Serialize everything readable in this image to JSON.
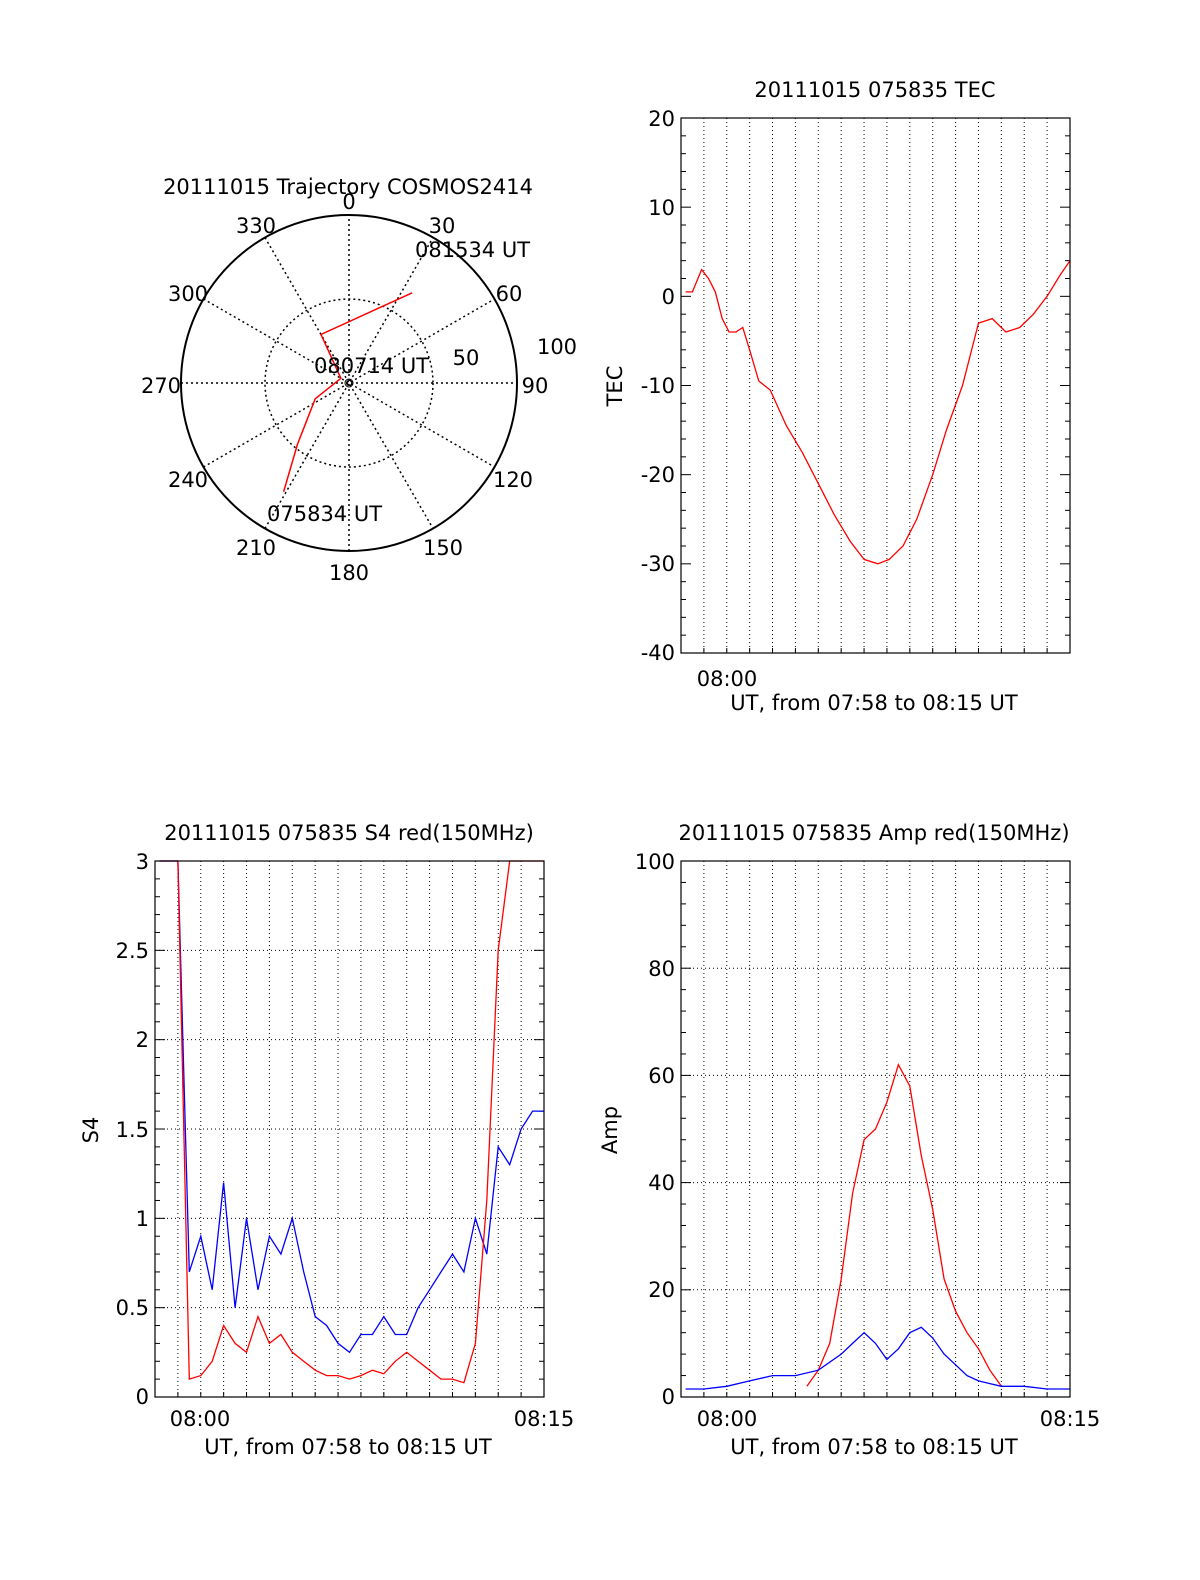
{
  "colors": {
    "primary": "#ff0000",
    "secondary": "#0000ff",
    "axis": "#000000",
    "grid": "#000000"
  },
  "chart_data": [
    {
      "type": "polar",
      "title": "20111015 Trajectory COSMOS2414",
      "azimuth_ticks": [
        "0",
        "30",
        "60",
        "90",
        "120",
        "150",
        "180",
        "210",
        "240",
        "270",
        "300",
        "330"
      ],
      "elevation_ticks": [
        "50",
        "100"
      ],
      "annotations": [
        "081534 UT",
        "080714 UT",
        "075834 UT"
      ],
      "trajectory": [
        {
          "az": 211,
          "el": 22,
          "time": "075834 UT"
        },
        {
          "az": 220,
          "el": 47
        },
        {
          "az": 245,
          "el": 70
        },
        {
          "az": 300,
          "el": 85
        },
        {
          "az": 330,
          "el": 60
        },
        {
          "az": 35,
          "el": 31,
          "time": "081534 UT"
        }
      ]
    },
    {
      "type": "line",
      "title": "20111015 075835 TEC",
      "xlabel": "UT, from 07:58 to 08:15 UT",
      "ylabel": "TEC",
      "xtick_labels": [
        "08:00"
      ],
      "ytick_labels": [
        "20",
        "10",
        "0",
        "-10",
        "-20",
        "-30",
        "-40"
      ],
      "xlim": [
        0,
        17
      ],
      "ylim": [
        -40,
        20
      ],
      "grid": true,
      "series": [
        {
          "color": "#ff0000",
          "x": [
            0.2,
            0.5,
            0.9,
            1.2,
            1.5,
            1.8,
            2.1,
            2.4,
            2.7,
            3.0,
            3.4,
            3.9,
            4.6,
            5.3,
            6.0,
            6.7,
            7.4,
            8.0,
            8.6,
            9.1,
            9.7,
            10.3,
            11.0,
            11.6,
            12.3,
            13.0,
            13.6,
            14.2,
            14.8,
            15.4,
            16.0,
            16.6,
            17.0
          ],
          "y": [
            0.5,
            0.5,
            3,
            2,
            0.5,
            -2.5,
            -4,
            -4,
            -3.5,
            -6,
            -9.5,
            -10.5,
            -14.5,
            -17.5,
            -21,
            -24.5,
            -27.5,
            -29.5,
            -30,
            -29.5,
            -28,
            -25,
            -20,
            -15,
            -10,
            -3,
            -2.5,
            -4,
            -3.5,
            -2,
            0,
            2.5,
            4
          ]
        }
      ]
    },
    {
      "type": "line",
      "title": "20111015 075835 S4 red(150MHz)",
      "xlabel": "UT, from 07:58 to 08:15 UT",
      "ylabel": "S4",
      "xtick_labels": [
        "08:00",
        "08:15"
      ],
      "ytick_labels": [
        "3",
        "2.5",
        "2",
        "1.5",
        "1",
        "0.5",
        "0"
      ],
      "xlim": [
        0,
        17
      ],
      "ylim": [
        0,
        3
      ],
      "grid": true,
      "series": [
        {
          "color": "#0000ff",
          "x": [
            0.2,
            0.6,
            1.0,
            1.5,
            2.0,
            2.5,
            3.0,
            3.5,
            4.0,
            4.5,
            5.0,
            5.5,
            6.0,
            6.5,
            7.0,
            7.5,
            8.0,
            8.5,
            9.0,
            9.5,
            10.0,
            10.5,
            11.0,
            11.5,
            12.0,
            12.5,
            13.0,
            13.5,
            14.0,
            14.5,
            15.0,
            15.5,
            16.0,
            16.5,
            17.0
          ],
          "y": [
            3,
            3,
            3,
            0.7,
            0.9,
            0.6,
            1.2,
            0.5,
            1.0,
            0.6,
            0.9,
            0.8,
            1.0,
            0.7,
            0.45,
            0.4,
            0.3,
            0.25,
            0.35,
            0.35,
            0.45,
            0.35,
            0.35,
            0.5,
            0.6,
            0.7,
            0.8,
            0.7,
            1.0,
            0.8,
            1.4,
            1.3,
            1.5,
            1.6,
            1.6
          ]
        },
        {
          "color": "#ff0000",
          "x": [
            0.2,
            0.6,
            1.0,
            1.5,
            2.0,
            2.5,
            3.0,
            3.5,
            4.0,
            4.5,
            5.0,
            5.5,
            6.0,
            6.5,
            7.0,
            7.5,
            8.0,
            8.5,
            9.0,
            9.5,
            10.0,
            10.5,
            11.0,
            11.5,
            12.0,
            12.5,
            13.0,
            13.5,
            14.0,
            14.5,
            15.0,
            15.5,
            16.0,
            16.5,
            17.0
          ],
          "y": [
            3,
            3,
            3,
            0.1,
            0.12,
            0.2,
            0.4,
            0.3,
            0.25,
            0.45,
            0.3,
            0.35,
            0.25,
            0.2,
            0.15,
            0.12,
            0.12,
            0.1,
            0.12,
            0.15,
            0.13,
            0.2,
            0.25,
            0.2,
            0.15,
            0.1,
            0.1,
            0.08,
            0.3,
            1.1,
            2.5,
            3,
            3,
            3,
            3
          ]
        }
      ]
    },
    {
      "type": "line",
      "title": "20111015 075835 Amp red(150MHz)",
      "xlabel": "UT, from 07:58 to 08:15 UT",
      "ylabel": "Amp",
      "xtick_labels": [
        "08:00",
        "08:15"
      ],
      "ytick_labels": [
        "100",
        "80",
        "60",
        "40",
        "20",
        "0"
      ],
      "xlim": [
        0,
        17
      ],
      "ylim": [
        0,
        100
      ],
      "grid": true,
      "series": [
        {
          "color": "#ff0000",
          "x": [
            5.5,
            6.0,
            6.5,
            7.0,
            7.5,
            8.0,
            8.5,
            9.0,
            9.5,
            10.0,
            10.5,
            11.0,
            11.5,
            12.0,
            12.5,
            13.0,
            13.5,
            14.0
          ],
          "y": [
            2,
            5,
            10,
            22,
            38,
            48,
            50,
            55,
            62,
            58,
            45,
            35,
            22,
            16,
            12,
            9,
            5,
            2
          ]
        },
        {
          "color": "#0000ff",
          "x": [
            0.2,
            1.0,
            2.0,
            3.0,
            4.0,
            5.0,
            6.0,
            7.0,
            7.5,
            8.0,
            8.5,
            9.0,
            9.5,
            10.0,
            10.5,
            11.0,
            11.5,
            12.0,
            12.5,
            13.0,
            13.5,
            14.0,
            15.0,
            16.0,
            17.0
          ],
          "y": [
            1.5,
            1.5,
            2,
            3,
            4,
            4,
            5,
            8,
            10,
            12,
            10,
            7,
            9,
            12,
            13,
            11,
            8,
            6,
            4,
            3,
            2.5,
            2,
            2,
            1.5,
            1.5
          ]
        }
      ]
    }
  ]
}
